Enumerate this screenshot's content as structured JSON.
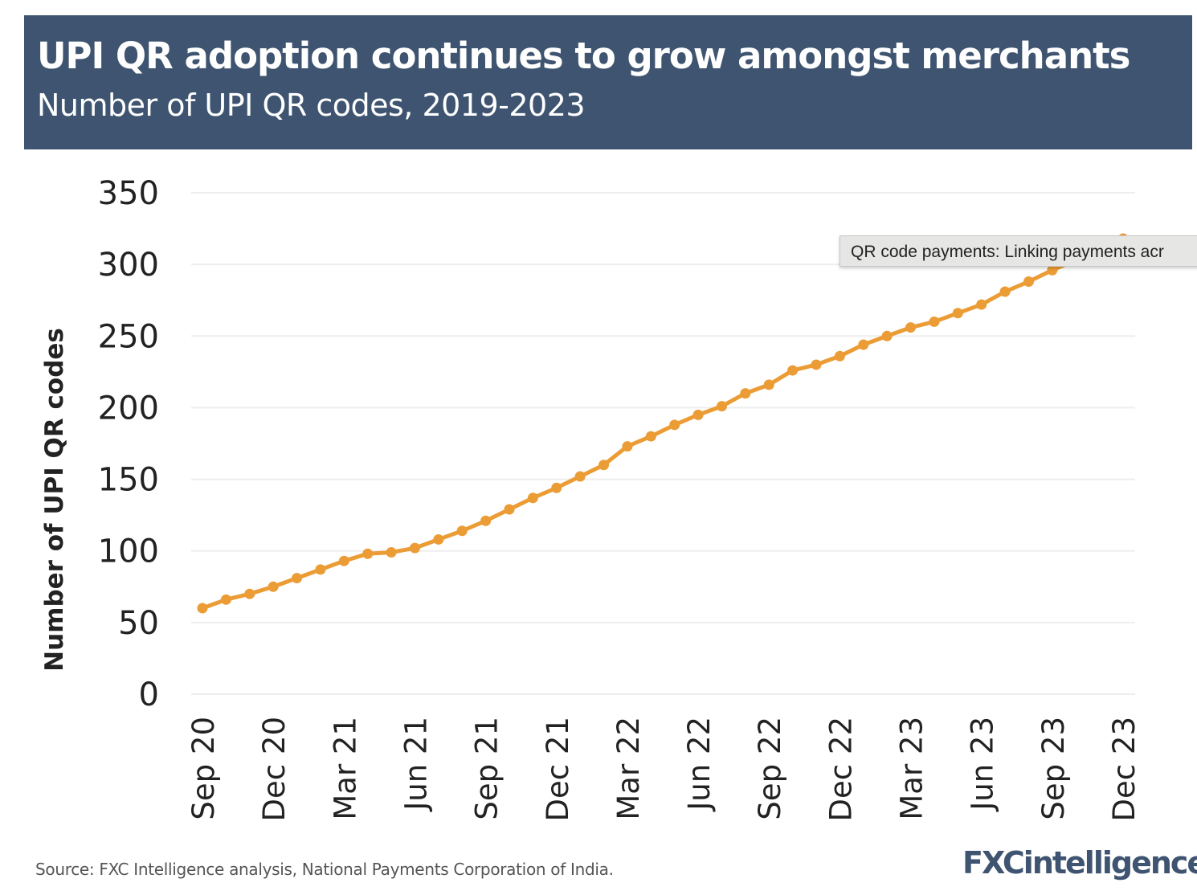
{
  "header": {
    "title": "UPI QR adoption continues to grow amongst merchants",
    "subtitle": "Number of UPI QR codes, 2019-2023"
  },
  "footer": {
    "source": "Source: FXC Intelligence analysis, National Payments Corporation of India.",
    "logo": "FXCintelligence"
  },
  "tooltip": {
    "text": "QR code payments: Linking payments acr"
  },
  "colors": {
    "header_bg": "#3e5470",
    "line": "#eb9c35",
    "grid": "#eeeeee"
  },
  "chart_data": {
    "type": "line",
    "title": "UPI QR adoption continues to grow amongst merchants",
    "subtitle": "Number of UPI QR codes, 2019-2023",
    "xlabel": "",
    "ylabel": "Number of UPI QR codes",
    "ylim": [
      0,
      350
    ],
    "yticks": [
      0,
      50,
      100,
      150,
      200,
      250,
      300,
      350
    ],
    "xtick_labels": [
      "Sep 20",
      "Dec 20",
      "Mar 21",
      "Jun 21",
      "Sep 21",
      "Dec 21",
      "Mar 22",
      "Jun 22",
      "Sep 22",
      "Dec 22",
      "Mar 23",
      "Jun 23",
      "Sep 23",
      "Dec 23"
    ],
    "grid": true,
    "x": [
      "Sep 20",
      "Oct 20",
      "Nov 20",
      "Dec 20",
      "Jan 21",
      "Feb 21",
      "Mar 21",
      "Apr 21",
      "May 21",
      "Jun 21",
      "Jul 21",
      "Aug 21",
      "Sep 21",
      "Oct 21",
      "Nov 21",
      "Dec 21",
      "Jan 22",
      "Feb 22",
      "Mar 22",
      "Apr 22",
      "May 22",
      "Jun 22",
      "Jul 22",
      "Aug 22",
      "Sep 22",
      "Oct 22",
      "Nov 22",
      "Dec 22",
      "Jan 23",
      "Feb 23",
      "Mar 23",
      "Apr 23",
      "May 23",
      "Jun 23",
      "Jul 23",
      "Aug 23",
      "Sep 23",
      "Oct 23",
      "Nov 23",
      "Dec 23"
    ],
    "series": [
      {
        "values": [
          60,
          66,
          70,
          75,
          81,
          87,
          93,
          98,
          99,
          102,
          108,
          114,
          121,
          129,
          137,
          144,
          152,
          160,
          173,
          180,
          188,
          195,
          201,
          210,
          216,
          226,
          230,
          236,
          244,
          250,
          256,
          260,
          266,
          272,
          281,
          288,
          296,
          303,
          310,
          318
        ]
      }
    ]
  }
}
